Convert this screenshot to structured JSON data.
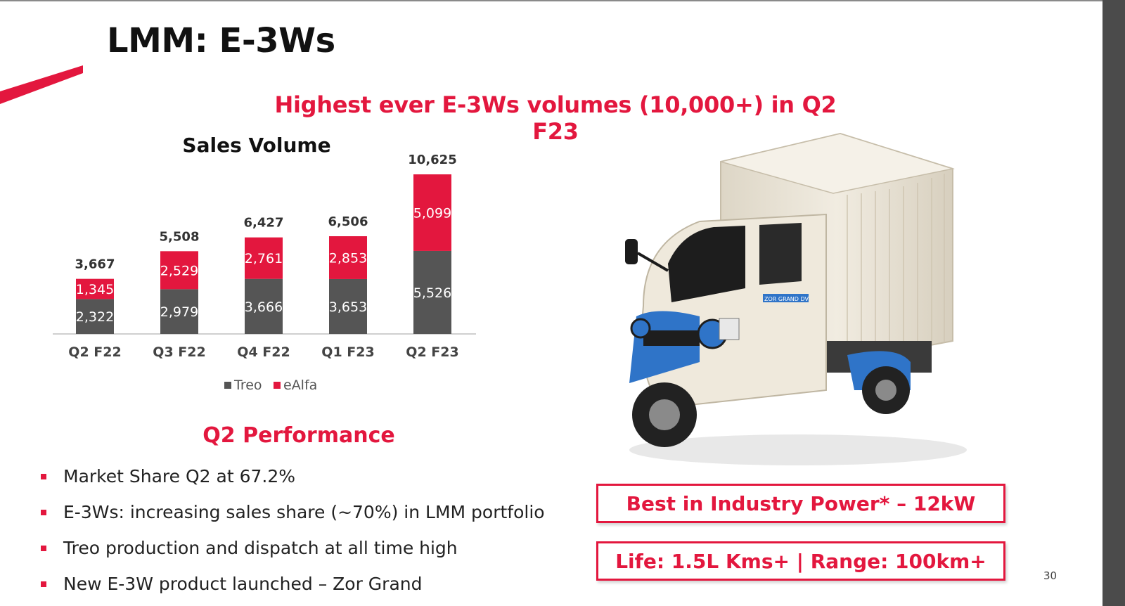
{
  "slide": {
    "title": "LMM: E-3Ws",
    "headline": "Highest ever E-3Ws volumes (10,000+) in Q2 F23",
    "page_number": "30"
  },
  "chart_data": {
    "type": "bar",
    "stacked": true,
    "title": "Sales Volume",
    "categories": [
      "Q2 F22",
      "Q3 F22",
      "Q4 F22",
      "Q1 F23",
      "Q2 F23"
    ],
    "series": [
      {
        "name": "Treo",
        "color": "#555555",
        "values": [
          2322,
          2979,
          3666,
          3653,
          5526
        ]
      },
      {
        "name": "eAlfa",
        "color": "#e3173e",
        "values": [
          1345,
          2529,
          2761,
          2853,
          5099
        ]
      }
    ],
    "totals": [
      3667,
      5508,
      6427,
      6506,
      10625
    ],
    "ylim": [
      0,
      10625
    ],
    "legend": "bottom",
    "grid": false
  },
  "performance": {
    "title": "Q2 Performance",
    "bullets": [
      "Market Share Q2 at 67.2%",
      "E-3Ws: increasing sales share (~70%) in LMM portfolio",
      "Treo production and dispatch at all time high",
      "New E-3W product launched – Zor Grand"
    ]
  },
  "vehicle": {
    "badge_text": "ZOR GRAND DV",
    "body_color": "#efe9dc",
    "accent_color": "#2f74c8"
  },
  "callouts": [
    "Best in Industry Power* – 12kW",
    "Life: 1.5L Kms+ | Range: 100km+"
  ],
  "colors": {
    "accent": "#e3173e",
    "treo": "#555555",
    "ealfa": "#e3173e"
  }
}
